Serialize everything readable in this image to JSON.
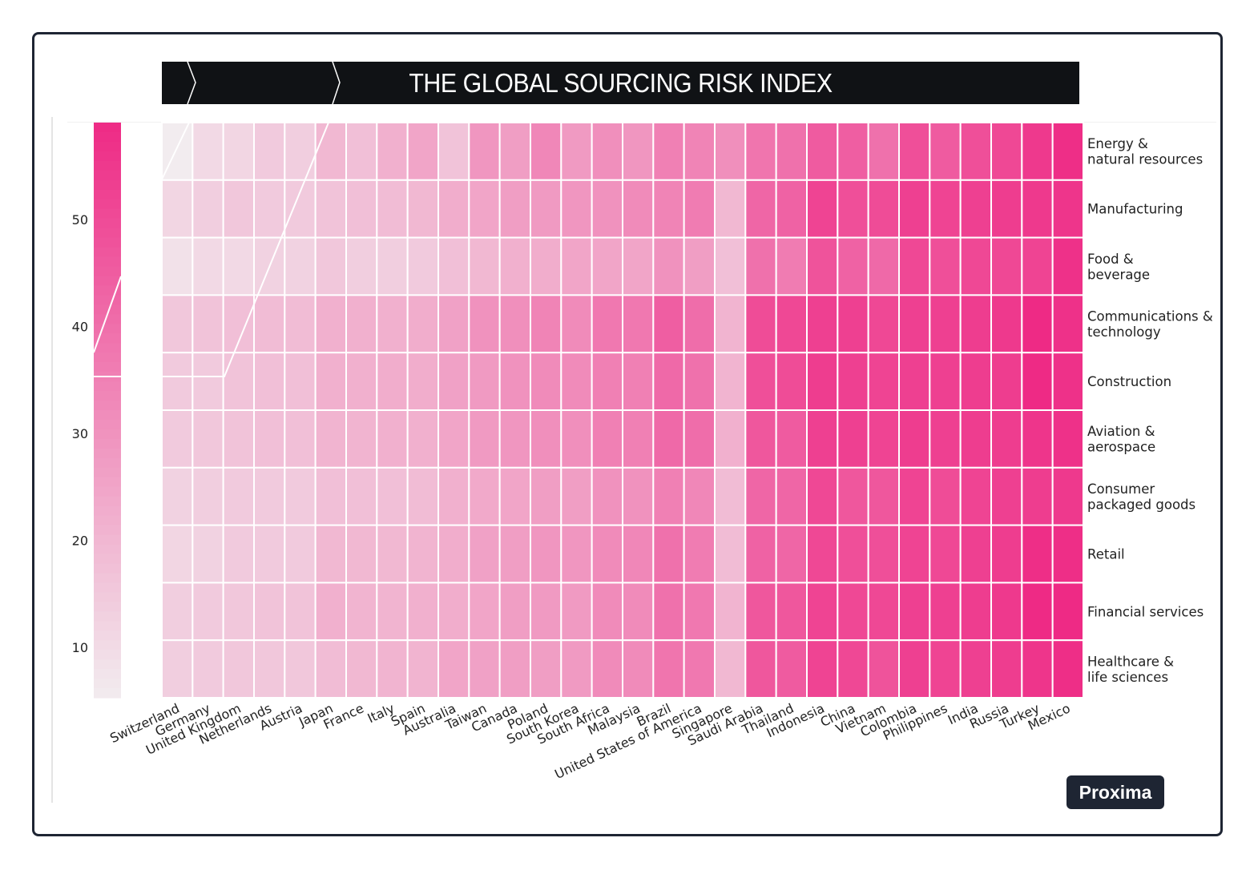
{
  "title": "THE GLOBAL SOURCING RISK INDEX",
  "badge": "Proxima",
  "colors": {
    "low": "#f2ecef",
    "high": "#ee2a85",
    "banner": "#101215",
    "frame": "#1e2533"
  },
  "chart_data": {
    "type": "heatmap",
    "title": "THE GLOBAL SOURCING RISK INDEX",
    "x": [
      "Switzerland",
      "Germany",
      "United Kingdom",
      "Netherlands",
      "Austria",
      "Japan",
      "France",
      "Italy",
      "Spain",
      "Australia",
      "Taiwan",
      "Canada",
      "Poland",
      "South Korea",
      "South Africa",
      "Malaysia",
      "Brazil",
      "United States of America",
      "Singapore",
      "Saudi Arabia",
      "Thailand",
      "Indonesia",
      "China",
      "Vietnam",
      "Colombia",
      "Philippines",
      "India",
      "Russia",
      "Turkey",
      "Mexico"
    ],
    "y": [
      "Energy &\nnatural resources",
      "Manufacturing",
      "Food &\nbeverage",
      "Communications &\ntechnology",
      "Construction",
      "Aviation &\naerospace",
      "Consumer\npackaged goods",
      "Retail",
      "Financial services",
      "Healthcare &\nlife sciences"
    ],
    "values": [
      [
        5,
        10,
        11,
        14,
        13,
        19,
        17,
        21,
        24,
        16,
        28,
        26,
        32,
        27,
        30,
        28,
        34,
        33,
        30,
        37,
        38,
        44,
        43,
        38,
        47,
        44,
        47,
        49,
        53,
        56
      ],
      [
        11,
        13,
        15,
        14,
        14,
        16,
        17,
        18,
        19,
        22,
        24,
        26,
        27,
        28,
        29,
        31,
        33,
        35,
        19,
        41,
        42,
        50,
        47,
        48,
        51,
        50,
        51,
        52,
        53,
        54
      ],
      [
        8,
        10,
        10,
        12,
        12,
        15,
        13,
        13,
        14,
        17,
        19,
        21,
        22,
        24,
        24,
        24,
        29,
        26,
        17,
        38,
        35,
        46,
        42,
        40,
        49,
        47,
        49,
        49,
        50,
        55
      ],
      [
        15,
        16,
        17,
        18,
        18,
        21,
        21,
        21,
        22,
        25,
        29,
        30,
        33,
        31,
        36,
        36,
        43,
        39,
        20,
        48,
        49,
        51,
        51,
        49,
        51,
        51,
        52,
        53,
        57,
        55
      ],
      [
        14,
        14,
        16,
        17,
        17,
        21,
        21,
        22,
        22,
        25,
        27,
        29,
        31,
        31,
        34,
        34,
        40,
        38,
        20,
        47,
        48,
        52,
        51,
        50,
        51,
        51,
        52,
        52,
        57,
        55
      ],
      [
        14,
        15,
        16,
        17,
        17,
        20,
        20,
        21,
        21,
        24,
        27,
        28,
        30,
        30,
        34,
        34,
        40,
        39,
        21,
        45,
        44,
        51,
        51,
        50,
        52,
        51,
        52,
        52,
        54,
        55
      ],
      [
        12,
        13,
        14,
        14,
        14,
        17,
        17,
        17,
        18,
        21,
        23,
        24,
        26,
        26,
        29,
        29,
        34,
        32,
        18,
        41,
        41,
        49,
        45,
        45,
        50,
        48,
        50,
        51,
        52,
        53
      ],
      [
        11,
        12,
        14,
        14,
        14,
        19,
        19,
        19,
        20,
        22,
        25,
        26,
        28,
        28,
        31,
        32,
        38,
        35,
        18,
        42,
        41,
        49,
        47,
        47,
        50,
        49,
        51,
        52,
        56,
        56
      ],
      [
        13,
        14,
        15,
        16,
        16,
        21,
        20,
        20,
        21,
        22,
        24,
        26,
        27,
        27,
        31,
        31,
        38,
        36,
        20,
        45,
        45,
        50,
        49,
        49,
        51,
        51,
        52,
        53,
        57,
        57
      ],
      [
        13,
        14,
        15,
        15,
        15,
        18,
        19,
        20,
        20,
        24,
        25,
        26,
        26,
        27,
        31,
        31,
        37,
        36,
        19,
        45,
        44,
        50,
        49,
        46,
        51,
        50,
        51,
        52,
        54,
        56
      ]
    ],
    "colorbar": {
      "ticks": [
        10,
        20,
        30,
        40,
        50
      ],
      "min": 5,
      "max": 57
    },
    "legend": "colorbar-left"
  }
}
